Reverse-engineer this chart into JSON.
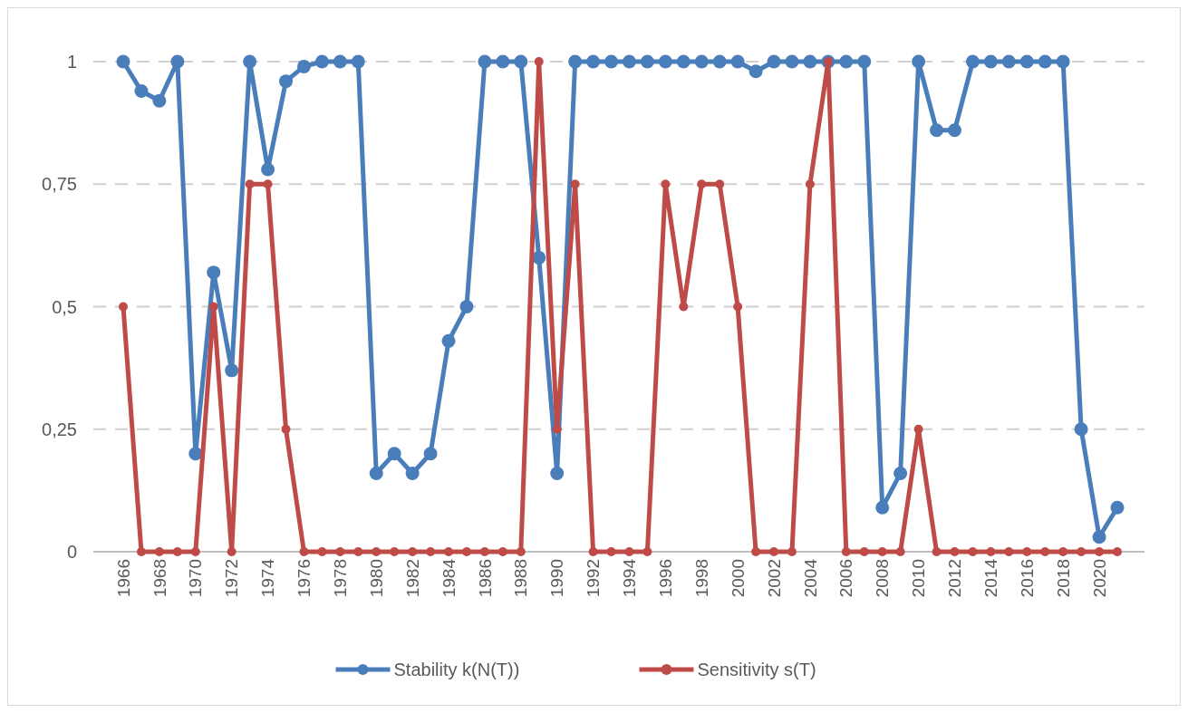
{
  "chart_data": {
    "type": "line",
    "categories": [
      "1966",
      null,
      "1968",
      null,
      "1970",
      null,
      "1972",
      null,
      "1974",
      null,
      "1976",
      null,
      "1978",
      null,
      "1980",
      null,
      "1982",
      null,
      "1984",
      null,
      "1986",
      null,
      "1988",
      null,
      "1990",
      null,
      "1992",
      null,
      "1994",
      null,
      "1996",
      null,
      "1998",
      null,
      "2000",
      null,
      "2002",
      null,
      "2004",
      null,
      "2006",
      null,
      "2008",
      null,
      "2010",
      null,
      "2012",
      null,
      "2014",
      null,
      "2016",
      null,
      "2018",
      null,
      "2020",
      null
    ],
    "series": [
      {
        "name": "Stability k(N(T))",
        "color": "#4a7ebb",
        "values": [
          1,
          0.94,
          0.92,
          1,
          0.2,
          0.57,
          0.37,
          1,
          0.78,
          0.96,
          0.99,
          1,
          1,
          1,
          0.16,
          0.2,
          0.16,
          0.2,
          0.43,
          0.5,
          1,
          1,
          1,
          0.6,
          0.16,
          1,
          1,
          1,
          1,
          1,
          1,
          1,
          1,
          1,
          1,
          0.98,
          1,
          1,
          1,
          1,
          1,
          1,
          0.09,
          0.16,
          1,
          0.86,
          0.86,
          1,
          1,
          1,
          1,
          1,
          1,
          0.25,
          0.03,
          0.09
        ]
      },
      {
        "name": "Sensitivity s(T)",
        "color": "#be4b48",
        "values": [
          0.5,
          0,
          0,
          0,
          0,
          0.5,
          0,
          0.75,
          0.75,
          0.25,
          0,
          0,
          0,
          0,
          0,
          0,
          0,
          0,
          0,
          0,
          0,
          0,
          0,
          1,
          0.25,
          0.75,
          0,
          0,
          0,
          0,
          0.75,
          0.5,
          0.75,
          0.75,
          0.5,
          0,
          0,
          0,
          0.75,
          1,
          0,
          0,
          0,
          0,
          0.25,
          0,
          0,
          0,
          0,
          0,
          0,
          0,
          0,
          0,
          0,
          0
        ]
      }
    ],
    "ylim": [
      0,
      1
    ],
    "yticks": [
      {
        "value": 0,
        "label": "0"
      },
      {
        "value": 0.25,
        "label": "0,25"
      },
      {
        "value": 0.5,
        "label": "0,5"
      },
      {
        "value": 0.75,
        "label": "0,75"
      },
      {
        "value": 1,
        "label": "1"
      }
    ],
    "grid": "y",
    "legend": "bottom",
    "marker": "circle",
    "line_style": "solid"
  }
}
